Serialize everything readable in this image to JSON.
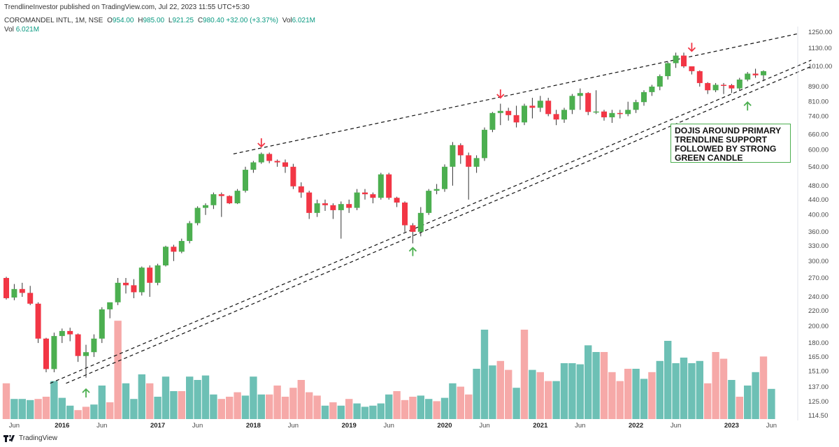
{
  "header": {
    "published": "TrendlineInvestor published on TradingView.com, Jul 22, 2023 11:55 UTC+5:30"
  },
  "legend": {
    "symbol": "COROMANDEL INTL, 1M, NSE",
    "o_label": "O",
    "o": "954.00",
    "h_label": "H",
    "h": "985.00",
    "l_label": "L",
    "l": "921.25",
    "c_label": "C",
    "c": "980.40",
    "change": "+32.00 (+3.37%)",
    "vol_label": "Vol",
    "vol": "6.021M",
    "vol_label2": "Vol",
    "vol2": "6.021M"
  },
  "footer": {
    "brand": "TradingView"
  },
  "annotation": {
    "lines": [
      "DOJIS AROUND PRIMARY",
      "TRENDLINE SUPPORT",
      "FOLLOWED BY STRONG",
      "GREEN CANDLE"
    ]
  },
  "chart_data": {
    "type": "candlestick",
    "scale": "log",
    "y_ticks": [
      1250,
      1130,
      1010,
      890,
      810,
      740,
      660,
      600,
      540,
      480,
      440,
      400,
      360,
      330,
      300,
      270,
      240,
      220,
      200,
      180,
      165,
      151,
      137,
      125,
      114.5
    ],
    "y_tick_labels": [
      "1250.00",
      "1130.00",
      "1010.00",
      "890.00",
      "810.00",
      "740.00",
      "660.00",
      "600.00",
      "540.00",
      "480.00",
      "440.00",
      "400.00",
      "360.00",
      "330.00",
      "300.00",
      "270.00",
      "240.00",
      "220.00",
      "200.00",
      "180.00",
      "165.00",
      "151.00",
      "137.00",
      "125.00",
      "114.50"
    ],
    "x_tick_labels": [
      {
        "label": "Jun",
        "index": 1,
        "year": false
      },
      {
        "label": "2016",
        "index": 7,
        "year": true
      },
      {
        "label": "Jun",
        "index": 12,
        "year": false
      },
      {
        "label": "2017",
        "index": 19,
        "year": true
      },
      {
        "label": "Jun",
        "index": 24,
        "year": false
      },
      {
        "label": "2018",
        "index": 31,
        "year": true
      },
      {
        "label": "Jun",
        "index": 36,
        "year": false
      },
      {
        "label": "2019",
        "index": 43,
        "year": true
      },
      {
        "label": "Jun",
        "index": 48,
        "year": false
      },
      {
        "label": "2020",
        "index": 55,
        "year": true
      },
      {
        "label": "Jun",
        "index": 60,
        "year": false
      },
      {
        "label": "2021",
        "index": 67,
        "year": true
      },
      {
        "label": "Jun",
        "index": 72,
        "year": false
      },
      {
        "label": "2022",
        "index": 79,
        "year": true
      },
      {
        "label": "Jun",
        "index": 84,
        "year": false
      },
      {
        "label": "2023",
        "index": 91,
        "year": true
      },
      {
        "label": "Jun",
        "index": 96,
        "year": false
      }
    ],
    "candles": [
      [
        270,
        272,
        236,
        238
      ],
      [
        239,
        260,
        235,
        252
      ],
      [
        252,
        262,
        240,
        246
      ],
      [
        246,
        257,
        228,
        230
      ],
      [
        230,
        232,
        180,
        185
      ],
      [
        185,
        186,
        150,
        153
      ],
      [
        153,
        192,
        150,
        188
      ],
      [
        188,
        197,
        180,
        194
      ],
      [
        194,
        198,
        182,
        190
      ],
      [
        190,
        191,
        160,
        166
      ],
      [
        166,
        178,
        145,
        170
      ],
      [
        170,
        190,
        165,
        185
      ],
      [
        185,
        225,
        180,
        222
      ],
      [
        222,
        230,
        210,
        232
      ],
      [
        232,
        270,
        228,
        262
      ],
      [
        262,
        270,
        245,
        258
      ],
      [
        258,
        268,
        238,
        247
      ],
      [
        247,
        290,
        242,
        288
      ],
      [
        288,
        292,
        240,
        262
      ],
      [
        262,
        295,
        258,
        292
      ],
      [
        292,
        330,
        290,
        328
      ],
      [
        328,
        332,
        300,
        318
      ],
      [
        318,
        345,
        315,
        340
      ],
      [
        340,
        385,
        335,
        380
      ],
      [
        380,
        422,
        375,
        418
      ],
      [
        418,
        430,
        400,
        425
      ],
      [
        425,
        460,
        415,
        455
      ],
      [
        455,
        460,
        395,
        450
      ],
      [
        450,
        452,
        428,
        430
      ],
      [
        430,
        470,
        428,
        465
      ],
      [
        465,
        540,
        460,
        530
      ],
      [
        530,
        560,
        520,
        555
      ],
      [
        555,
        590,
        550,
        585
      ],
      [
        585,
        590,
        552,
        560
      ],
      [
        560,
        565,
        540,
        555
      ],
      [
        555,
        565,
        520,
        540
      ],
      [
        540,
        550,
        470,
        478
      ],
      [
        478,
        490,
        445,
        460
      ],
      [
        460,
        465,
        390,
        405
      ],
      [
        405,
        440,
        395,
        430
      ],
      [
        430,
        440,
        410,
        425
      ],
      [
        425,
        430,
        390,
        412
      ],
      [
        412,
        435,
        345,
        428
      ],
      [
        428,
        440,
        405,
        418
      ],
      [
        418,
        470,
        412,
        460
      ],
      [
        460,
        470,
        440,
        455
      ],
      [
        455,
        460,
        430,
        445
      ],
      [
        445,
        520,
        440,
        515
      ],
      [
        515,
        520,
        440,
        445
      ],
      [
        445,
        448,
        420,
        432
      ],
      [
        432,
        435,
        360,
        375
      ],
      [
        375,
        380,
        335,
        360
      ],
      [
        360,
        420,
        350,
        405
      ],
      [
        405,
        470,
        400,
        465
      ],
      [
        465,
        485,
        455,
        470
      ],
      [
        470,
        548,
        462,
        540
      ],
      [
        540,
        630,
        480,
        618
      ],
      [
        618,
        625,
        550,
        580
      ],
      [
        580,
        590,
        440,
        540
      ],
      [
        540,
        580,
        520,
        570
      ],
      [
        570,
        690,
        560,
        680
      ],
      [
        680,
        760,
        670,
        755
      ],
      [
        755,
        800,
        700,
        765
      ],
      [
        765,
        780,
        720,
        745
      ],
      [
        745,
        790,
        690,
        712
      ],
      [
        712,
        800,
        700,
        790
      ],
      [
        790,
        830,
        730,
        780
      ],
      [
        780,
        840,
        760,
        815
      ],
      [
        815,
        830,
        740,
        750
      ],
      [
        750,
        770,
        700,
        725
      ],
      [
        725,
        780,
        710,
        770
      ],
      [
        770,
        850,
        750,
        840
      ],
      [
        840,
        880,
        770,
        855
      ],
      [
        855,
        860,
        745,
        760
      ],
      [
        760,
        870,
        750,
        762
      ],
      [
        762,
        770,
        720,
        735
      ],
      [
        735,
        770,
        710,
        755
      ],
      [
        755,
        770,
        730,
        750
      ],
      [
        750,
        810,
        740,
        770
      ],
      [
        770,
        820,
        755,
        808
      ],
      [
        808,
        870,
        790,
        860
      ],
      [
        860,
        900,
        840,
        890
      ],
      [
        890,
        960,
        870,
        950
      ],
      [
        950,
        1040,
        930,
        1030
      ],
      [
        1030,
        1100,
        1000,
        1080
      ],
      [
        1080,
        1100,
        1000,
        1010
      ],
      [
        1010,
        1010,
        960,
        980
      ],
      [
        980,
        985,
        890,
        910
      ],
      [
        910,
        915,
        850,
        870
      ],
      [
        870,
        910,
        860,
        900
      ],
      [
        900,
        910,
        850,
        898
      ],
      [
        898,
        905,
        855,
        880
      ],
      [
        880,
        940,
        870,
        930
      ],
      [
        930,
        975,
        920,
        965
      ],
      [
        965,
        995,
        940,
        955
      ],
      [
        955,
        985,
        921,
        980
      ]
    ],
    "volume_y_ticks": [],
    "volumes": [
      [
        0.32,
        "r"
      ],
      [
        0.18,
        "g"
      ],
      [
        0.18,
        "g"
      ],
      [
        0.17,
        "g"
      ],
      [
        0.18,
        "r"
      ],
      [
        0.2,
        "r"
      ],
      [
        0.34,
        "g"
      ],
      [
        0.19,
        "g"
      ],
      [
        0.12,
        "g"
      ],
      [
        0.08,
        "r"
      ],
      [
        0.11,
        "r"
      ],
      [
        0.13,
        "g"
      ],
      [
        0.3,
        "g"
      ],
      [
        0.15,
        "r"
      ],
      [
        0.88,
        "r"
      ],
      [
        0.32,
        "g"
      ],
      [
        0.18,
        "g"
      ],
      [
        0.4,
        "g"
      ],
      [
        0.32,
        "r"
      ],
      [
        0.2,
        "g"
      ],
      [
        0.38,
        "g"
      ],
      [
        0.25,
        "g"
      ],
      [
        0.25,
        "r"
      ],
      [
        0.38,
        "g"
      ],
      [
        0.35,
        "g"
      ],
      [
        0.39,
        "g"
      ],
      [
        0.22,
        "g"
      ],
      [
        0.18,
        "r"
      ],
      [
        0.2,
        "r"
      ],
      [
        0.24,
        "r"
      ],
      [
        0.21,
        "g"
      ],
      [
        0.38,
        "g"
      ],
      [
        0.22,
        "g"
      ],
      [
        0.22,
        "r"
      ],
      [
        0.3,
        "r"
      ],
      [
        0.2,
        "r"
      ],
      [
        0.28,
        "r"
      ],
      [
        0.35,
        "r"
      ],
      [
        0.24,
        "r"
      ],
      [
        0.21,
        "r"
      ],
      [
        0.12,
        "g"
      ],
      [
        0.15,
        "r"
      ],
      [
        0.12,
        "g"
      ],
      [
        0.18,
        "r"
      ],
      [
        0.14,
        "g"
      ],
      [
        0.11,
        "g"
      ],
      [
        0.12,
        "g"
      ],
      [
        0.14,
        "g"
      ],
      [
        0.22,
        "g"
      ],
      [
        0.25,
        "r"
      ],
      [
        0.17,
        "r"
      ],
      [
        0.2,
        "r"
      ],
      [
        0.21,
        "g"
      ],
      [
        0.18,
        "g"
      ],
      [
        0.16,
        "r"
      ],
      [
        0.19,
        "g"
      ],
      [
        0.32,
        "g"
      ],
      [
        0.29,
        "r"
      ],
      [
        0.22,
        "r"
      ],
      [
        0.45,
        "g"
      ],
      [
        0.8,
        "g"
      ],
      [
        0.48,
        "g"
      ],
      [
        0.52,
        "r"
      ],
      [
        0.44,
        "r"
      ],
      [
        0.28,
        "g"
      ],
      [
        0.8,
        "r"
      ],
      [
        0.44,
        "g"
      ],
      [
        0.42,
        "r"
      ],
      [
        0.34,
        "r"
      ],
      [
        0.34,
        "g"
      ],
      [
        0.5,
        "g"
      ],
      [
        0.5,
        "g"
      ],
      [
        0.49,
        "g"
      ],
      [
        0.66,
        "g"
      ],
      [
        0.6,
        "g"
      ],
      [
        0.6,
        "r"
      ],
      [
        0.42,
        "r"
      ],
      [
        0.34,
        "r"
      ],
      [
        0.45,
        "r"
      ],
      [
        0.45,
        "g"
      ],
      [
        0.36,
        "g"
      ],
      [
        0.42,
        "r"
      ],
      [
        0.52,
        "g"
      ],
      [
        0.7,
        "g"
      ],
      [
        0.5,
        "g"
      ],
      [
        0.55,
        "g"
      ],
      [
        0.5,
        "g"
      ],
      [
        0.52,
        "g"
      ],
      [
        0.32,
        "r"
      ],
      [
        0.6,
        "r"
      ],
      [
        0.54,
        "r"
      ],
      [
        0.35,
        "g"
      ],
      [
        0.2,
        "r"
      ],
      [
        0.3,
        "g"
      ],
      [
        0.42,
        "g"
      ],
      [
        0.56,
        "r"
      ],
      [
        0.27,
        "g"
      ]
    ],
    "colors": {
      "up": "#4caf50",
      "down": "#f23645",
      "vol_up": "#6dc0b5",
      "vol_down": "#f6a9a8",
      "annotation_border": "#4caf50"
    },
    "trendlines": [
      {
        "from_index": 60.5,
        "from_value": 570,
        "to_index": 99.5,
        "to_value": 1240,
        "anchor_index": 28.5,
        "anchor_value": 585
      },
      {
        "from_index": 5.5,
        "from_value": 140,
        "to_index": 101,
        "to_value": 1050
      },
      {
        "from_index": 7.5,
        "from_value": 140,
        "to_index": 101,
        "to_value": 1010
      }
    ],
    "arrows": [
      {
        "index": 32,
        "value": 612,
        "direction": "down"
      },
      {
        "index": 62,
        "value": 830,
        "direction": "down"
      },
      {
        "index": 86,
        "value": 1110,
        "direction": "down"
      },
      {
        "index": 10,
        "value": 135,
        "direction": "up"
      },
      {
        "index": 51,
        "value": 326,
        "direction": "up"
      },
      {
        "index": 93,
        "value": 808,
        "direction": "up"
      }
    ]
  }
}
